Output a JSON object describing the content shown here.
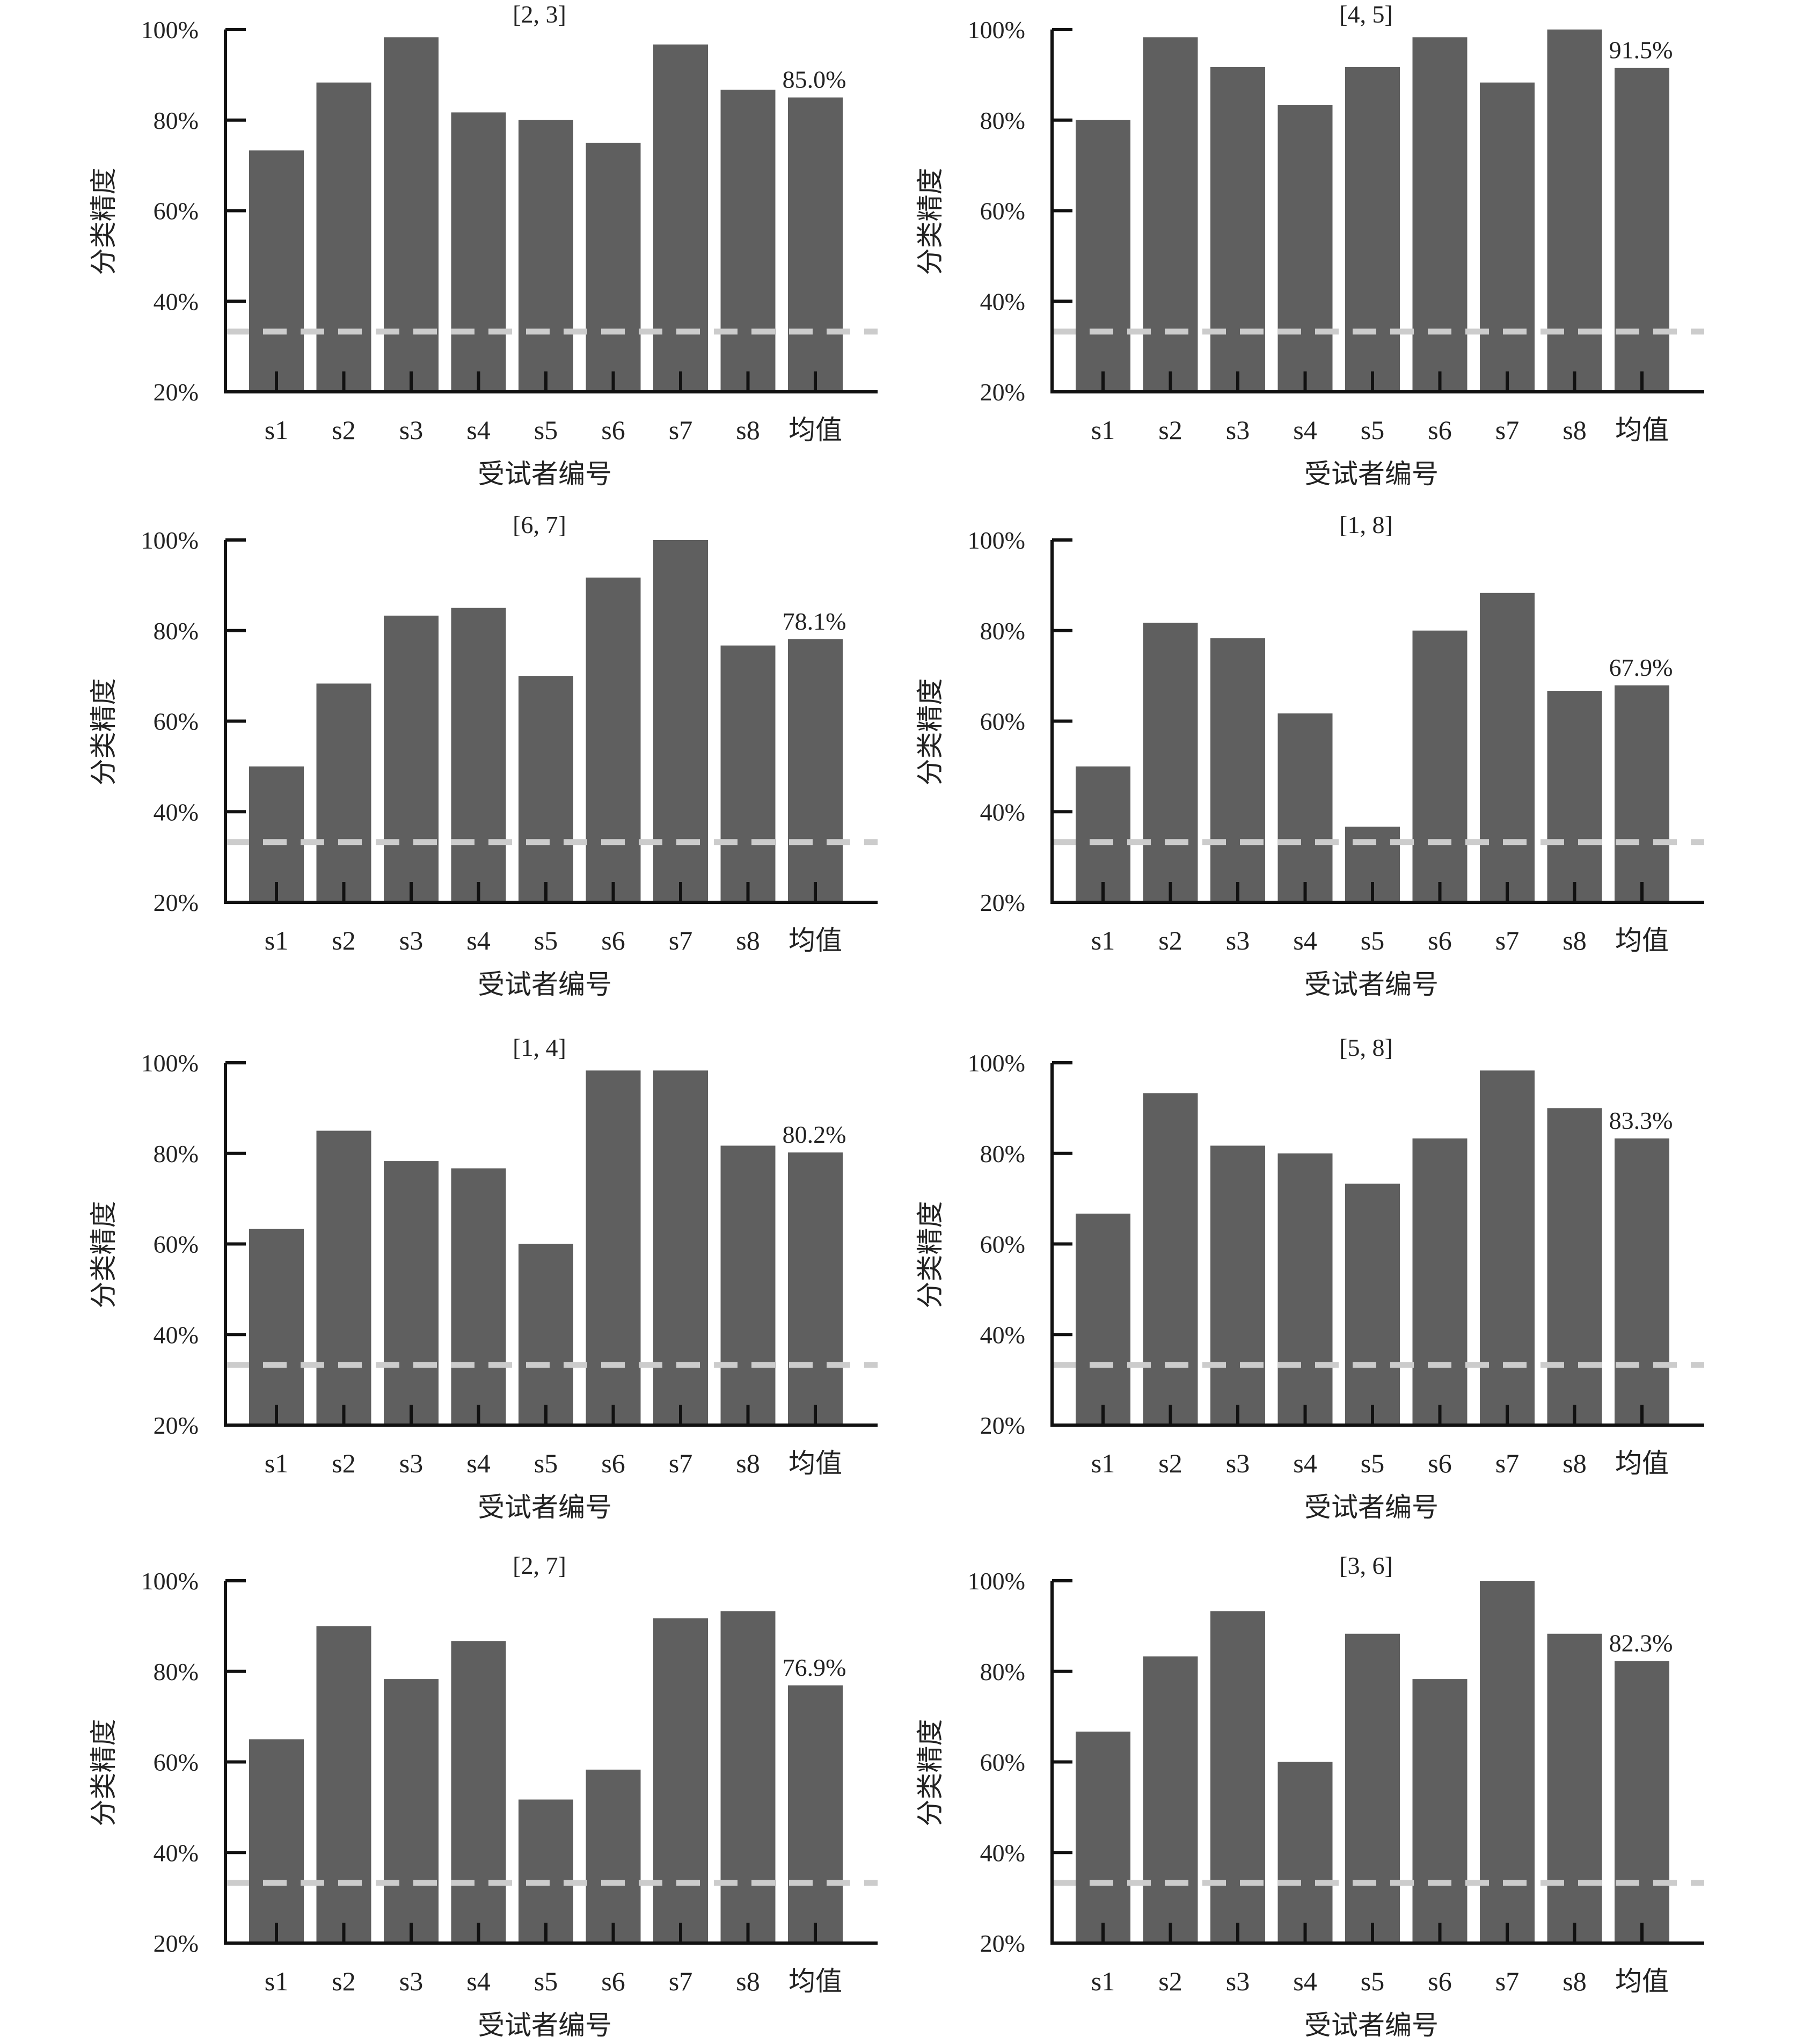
{
  "chart_data": [
    {
      "type": "bar",
      "title": "[2, 3]",
      "categories": [
        "s1",
        "s2",
        "s3",
        "s4",
        "s5",
        "s6",
        "s7",
        "s8",
        "均值"
      ],
      "values": [
        73.3,
        88.3,
        98.3,
        81.7,
        80.0,
        75.0,
        96.7,
        86.7,
        85.0
      ],
      "mean_label": "85.0%",
      "chance_level": 33.3,
      "xlabel": "受试者编号",
      "ylabel": "分类精度",
      "ylim": [
        20,
        100
      ],
      "yticks": [
        "20%",
        "40%",
        "60%",
        "80%",
        "100%"
      ],
      "colors": {
        "bar": "#5f5f5f",
        "chance_line": "#cccccc"
      }
    },
    {
      "type": "bar",
      "title": "[4, 5]",
      "categories": [
        "s1",
        "s2",
        "s3",
        "s4",
        "s5",
        "s6",
        "s7",
        "s8",
        "均值"
      ],
      "values": [
        80.0,
        98.3,
        91.7,
        83.3,
        91.7,
        98.3,
        88.3,
        100.0,
        91.5
      ],
      "mean_label": "91.5%",
      "chance_level": 33.3,
      "xlabel": "受试者编号",
      "ylabel": "分类精度",
      "ylim": [
        20,
        100
      ],
      "yticks": [
        "20%",
        "40%",
        "60%",
        "80%",
        "100%"
      ],
      "colors": {
        "bar": "#5f5f5f",
        "chance_line": "#cccccc"
      }
    },
    {
      "type": "bar",
      "title": "[6, 7]",
      "categories": [
        "s1",
        "s2",
        "s3",
        "s4",
        "s5",
        "s6",
        "s7",
        "s8",
        "均值"
      ],
      "values": [
        50.0,
        68.3,
        83.3,
        85.0,
        70.0,
        91.7,
        100.0,
        76.7,
        78.1
      ],
      "mean_label": "78.1%",
      "chance_level": 33.3,
      "xlabel": "受试者编号",
      "ylabel": "分类精度",
      "ylim": [
        20,
        100
      ],
      "yticks": [
        "20%",
        "40%",
        "60%",
        "80%",
        "100%"
      ],
      "colors": {
        "bar": "#5f5f5f",
        "chance_line": "#cccccc"
      }
    },
    {
      "type": "bar",
      "title": "[1, 8]",
      "categories": [
        "s1",
        "s2",
        "s3",
        "s4",
        "s5",
        "s6",
        "s7",
        "s8",
        "均值"
      ],
      "values": [
        50.0,
        81.7,
        78.3,
        61.7,
        36.7,
        80.0,
        88.3,
        66.7,
        67.9
      ],
      "mean_label": "67.9%",
      "chance_level": 33.3,
      "xlabel": "受试者编号",
      "ylabel": "分类精度",
      "ylim": [
        20,
        100
      ],
      "yticks": [
        "20%",
        "40%",
        "60%",
        "80%",
        "100%"
      ],
      "colors": {
        "bar": "#5f5f5f",
        "chance_line": "#cccccc"
      }
    },
    {
      "type": "bar",
      "title": "[1, 4]",
      "categories": [
        "s1",
        "s2",
        "s3",
        "s4",
        "s5",
        "s6",
        "s7",
        "s8",
        "均值"
      ],
      "values": [
        63.3,
        85.0,
        78.3,
        76.7,
        60.0,
        98.3,
        98.3,
        81.7,
        80.2
      ],
      "mean_label": "80.2%",
      "chance_level": 33.3,
      "xlabel": "受试者编号",
      "ylabel": "分类精度",
      "ylim": [
        20,
        100
      ],
      "yticks": [
        "20%",
        "40%",
        "60%",
        "80%",
        "100%"
      ],
      "colors": {
        "bar": "#5f5f5f",
        "chance_line": "#cccccc"
      }
    },
    {
      "type": "bar",
      "title": "[5, 8]",
      "categories": [
        "s1",
        "s2",
        "s3",
        "s4",
        "s5",
        "s6",
        "s7",
        "s8",
        "均值"
      ],
      "values": [
        66.7,
        93.3,
        81.7,
        80.0,
        73.3,
        83.3,
        98.3,
        90.0,
        83.3
      ],
      "mean_label": "83.3%",
      "chance_level": 33.3,
      "xlabel": "受试者编号",
      "ylabel": "分类精度",
      "ylim": [
        20,
        100
      ],
      "yticks": [
        "20%",
        "40%",
        "60%",
        "80%",
        "100%"
      ],
      "colors": {
        "bar": "#5f5f5f",
        "chance_line": "#cccccc"
      }
    },
    {
      "type": "bar",
      "title": "[2, 7]",
      "categories": [
        "s1",
        "s2",
        "s3",
        "s4",
        "s5",
        "s6",
        "s7",
        "s8",
        "均值"
      ],
      "values": [
        65.0,
        90.0,
        78.3,
        86.7,
        51.7,
        58.3,
        91.7,
        93.3,
        76.9
      ],
      "mean_label": "76.9%",
      "chance_level": 33.3,
      "xlabel": "受试者编号",
      "ylabel": "分类精度",
      "ylim": [
        20,
        100
      ],
      "yticks": [
        "20%",
        "40%",
        "60%",
        "80%",
        "100%"
      ],
      "colors": {
        "bar": "#5f5f5f",
        "chance_line": "#cccccc"
      }
    },
    {
      "type": "bar",
      "title": "[3, 6]",
      "categories": [
        "s1",
        "s2",
        "s3",
        "s4",
        "s5",
        "s6",
        "s7",
        "s8",
        "均值"
      ],
      "values": [
        66.7,
        83.3,
        93.3,
        60.0,
        88.3,
        78.3,
        100.0,
        88.3,
        82.3
      ],
      "mean_label": "82.3%",
      "chance_level": 33.3,
      "xlabel": "受试者编号",
      "ylabel": "分类精度",
      "ylim": [
        20,
        100
      ],
      "yticks": [
        "20%",
        "40%",
        "60%",
        "80%",
        "100%"
      ],
      "colors": {
        "bar": "#5f5f5f",
        "chance_line": "#cccccc"
      }
    }
  ]
}
